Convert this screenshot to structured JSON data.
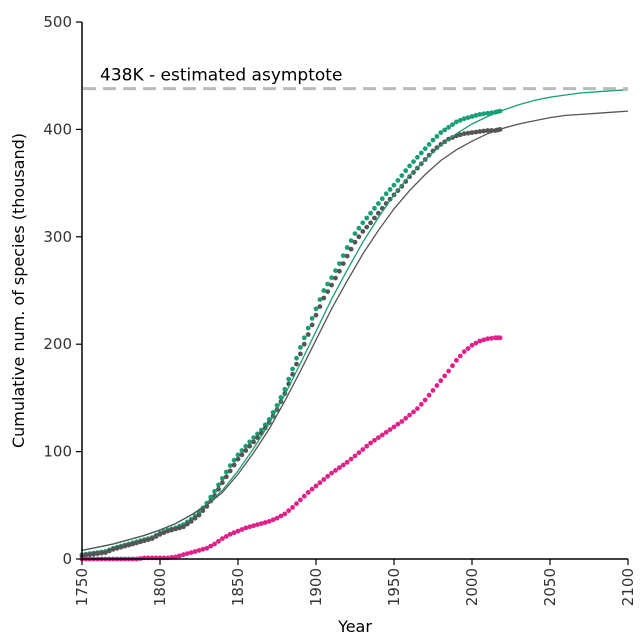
{
  "chart_data": {
    "type": "scatter",
    "xlabel": "Year",
    "ylabel": "Cumulative num. of species (thousand)",
    "xlim": [
      1750,
      2100
    ],
    "ylim": [
      0,
      500
    ],
    "xticks": [
      1750,
      1800,
      1850,
      1900,
      1950,
      2000,
      2050,
      2100
    ],
    "yticks": [
      0,
      100,
      200,
      300,
      400,
      500
    ],
    "grid": false,
    "legend": "none",
    "annotation": {
      "text": "438K - estimated asymptote",
      "y": 438,
      "color": "#bbbbbb"
    },
    "series": [
      {
        "color": "#1a9e77",
        "style": "points",
        "x": [
          1750,
          1755,
          1760,
          1765,
          1770,
          1775,
          1780,
          1785,
          1790,
          1795,
          1800,
          1805,
          1810,
          1815,
          1820,
          1825,
          1830,
          1835,
          1840,
          1845,
          1850,
          1855,
          1860,
          1865,
          1870,
          1875,
          1880,
          1885,
          1890,
          1895,
          1900,
          1905,
          1910,
          1915,
          1920,
          1925,
          1930,
          1935,
          1940,
          1945,
          1950,
          1955,
          1960,
          1965,
          1970,
          1975,
          1980,
          1985,
          1990,
          1995,
          2000,
          2005,
          2010,
          2015,
          2018
        ],
        "values": [
          4,
          5,
          6,
          7,
          10,
          12,
          14,
          16,
          18,
          20,
          24,
          27,
          29,
          32,
          37,
          43,
          52,
          63,
          75,
          87,
          97,
          105,
          113,
          120,
          130,
          143,
          158,
          177,
          197,
          215,
          233,
          250,
          262,
          275,
          290,
          303,
          313,
          322,
          331,
          340,
          348,
          357,
          366,
          374,
          382,
          390,
          397,
          402,
          407,
          410,
          412,
          414,
          415,
          416,
          417
        ]
      },
      {
        "color": "#555555",
        "style": "points",
        "x": [
          1750,
          1755,
          1760,
          1765,
          1770,
          1775,
          1780,
          1785,
          1790,
          1795,
          1800,
          1805,
          1810,
          1815,
          1820,
          1825,
          1830,
          1835,
          1840,
          1845,
          1850,
          1855,
          1860,
          1865,
          1870,
          1875,
          1880,
          1885,
          1890,
          1895,
          1900,
          1905,
          1910,
          1915,
          1920,
          1925,
          1930,
          1935,
          1940,
          1945,
          1950,
          1955,
          1960,
          1965,
          1970,
          1975,
          1980,
          1985,
          1990,
          1995,
          2000,
          2005,
          2010,
          2015,
          2018
        ],
        "values": [
          3,
          4,
          5,
          6,
          9,
          11,
          13,
          15,
          17,
          19,
          23,
          26,
          28,
          30,
          35,
          41,
          49,
          59,
          71,
          82,
          93,
          101,
          109,
          117,
          127,
          139,
          154,
          172,
          191,
          209,
          227,
          243,
          255,
          268,
          282,
          295,
          305,
          313,
          322,
          331,
          339,
          347,
          356,
          364,
          372,
          380,
          386,
          391,
          394,
          396,
          397,
          398,
          399,
          399,
          400
        ]
      },
      {
        "color": "#e0218a",
        "style": "points",
        "x": [
          1750,
          1755,
          1760,
          1765,
          1770,
          1775,
          1780,
          1785,
          1790,
          1795,
          1800,
          1805,
          1810,
          1815,
          1820,
          1825,
          1830,
          1835,
          1840,
          1845,
          1850,
          1855,
          1860,
          1865,
          1870,
          1875,
          1880,
          1885,
          1890,
          1895,
          1900,
          1905,
          1910,
          1915,
          1920,
          1925,
          1930,
          1935,
          1940,
          1945,
          1950,
          1955,
          1960,
          1965,
          1970,
          1975,
          1980,
          1985,
          1990,
          1995,
          2000,
          2005,
          2010,
          2015,
          2018
        ],
        "values": [
          0,
          0,
          0,
          0,
          0,
          0,
          0,
          0,
          1,
          1,
          1,
          1,
          2,
          4,
          6,
          8,
          10,
          14,
          19,
          23,
          26,
          29,
          31,
          33,
          35,
          38,
          42,
          48,
          55,
          62,
          68,
          74,
          80,
          85,
          90,
          96,
          102,
          108,
          113,
          118,
          123,
          128,
          134,
          140,
          148,
          157,
          166,
          175,
          185,
          193,
          199,
          203,
          205,
          206,
          206
        ]
      },
      {
        "color": "#1a9e77",
        "style": "line",
        "x": [
          1750,
          1760,
          1770,
          1780,
          1790,
          1800,
          1810,
          1820,
          1830,
          1840,
          1850,
          1860,
          1870,
          1880,
          1890,
          1900,
          1910,
          1920,
          1930,
          1940,
          1950,
          1960,
          1970,
          1980,
          1990,
          2000,
          2010,
          2020,
          2030,
          2040,
          2050,
          2060,
          2070,
          2080,
          2090,
          2100
        ],
        "values": [
          8,
          11,
          14,
          18,
          22,
          27,
          33,
          41,
          51,
          64,
          82,
          103,
          126,
          153,
          182,
          212,
          242,
          269,
          295,
          318,
          339,
          357,
          372,
          385,
          396,
          405,
          412,
          418,
          423,
          427,
          430,
          432,
          434,
          435,
          436,
          437
        ]
      },
      {
        "color": "#555555",
        "style": "line",
        "x": [
          1750,
          1760,
          1770,
          1780,
          1790,
          1800,
          1810,
          1820,
          1830,
          1840,
          1850,
          1860,
          1870,
          1880,
          1890,
          1900,
          1910,
          1920,
          1930,
          1940,
          1950,
          1960,
          1970,
          1980,
          1990,
          2000,
          2010,
          2020,
          2030,
          2040,
          2050,
          2060,
          2070,
          2080,
          2090,
          2100
        ],
        "values": [
          8,
          11,
          14,
          18,
          22,
          27,
          33,
          41,
          50,
          62,
          79,
          99,
          121,
          147,
          175,
          204,
          233,
          259,
          284,
          306,
          326,
          343,
          358,
          371,
          381,
          389,
          396,
          401,
          405,
          408,
          411,
          413,
          414,
          415,
          416,
          417
        ]
      }
    ]
  }
}
